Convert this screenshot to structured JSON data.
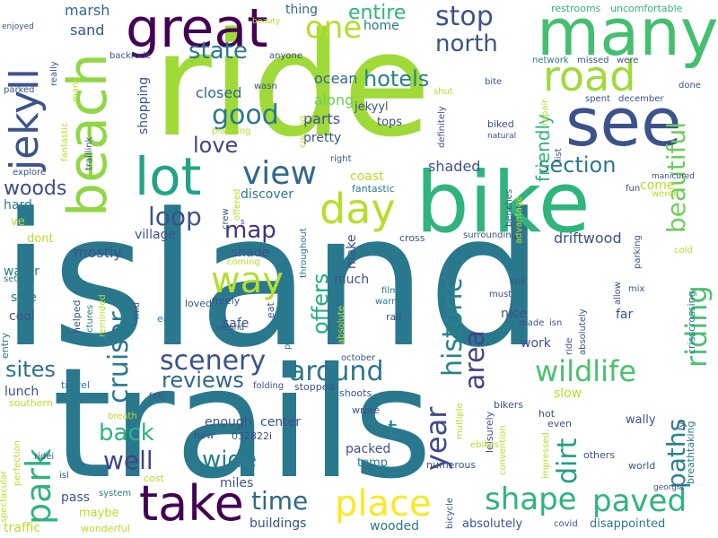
{
  "words": [
    {
      "text": "island",
      "color": "#2a788e",
      "v": false
    },
    {
      "text": "trails",
      "color": "#2a788e",
      "v": false
    },
    {
      "text": "ride",
      "color": "#a0da39",
      "v": false
    },
    {
      "text": "bike",
      "color": "#2fb47c",
      "v": false
    },
    {
      "text": "beach",
      "color": "#8fd744",
      "v": true
    },
    {
      "text": "many",
      "color": "#44bf70",
      "v": false
    },
    {
      "text": "see",
      "color": "#3b528b",
      "v": false
    },
    {
      "text": "great",
      "color": "#440154",
      "v": false
    },
    {
      "text": "jekyll",
      "color": "#3b528b",
      "v": true
    },
    {
      "text": "park",
      "color": "#2fb47c",
      "v": true
    },
    {
      "text": "lot",
      "color": "#20a386",
      "v": false
    },
    {
      "text": "take",
      "color": "#440154",
      "v": false
    },
    {
      "text": "place",
      "color": "#fde725",
      "v": false
    },
    {
      "text": "shape",
      "color": "#2fb47c",
      "v": false
    },
    {
      "text": "paved",
      "color": "#2fb47c",
      "v": false
    },
    {
      "text": "road",
      "color": "#a0da39",
      "v": false
    },
    {
      "text": "day",
      "color": "#b5de2b",
      "v": false
    },
    {
      "text": "one",
      "color": "#b5de2b",
      "v": false
    },
    {
      "text": "way",
      "color": "#b5de2b",
      "v": false
    },
    {
      "text": "view",
      "color": "#31688e",
      "v": false
    },
    {
      "text": "good",
      "color": "#2a788e",
      "v": false
    },
    {
      "text": "around",
      "color": "#2a788e",
      "v": false
    },
    {
      "text": "scenery",
      "color": "#3b528b",
      "v": false
    },
    {
      "text": "wildlife",
      "color": "#4ac16d",
      "v": false
    },
    {
      "text": "riding",
      "color": "#4ac16d",
      "v": true
    },
    {
      "text": "beautiful",
      "color": "#6ece58",
      "v": true
    },
    {
      "text": "historic",
      "color": "#26828e",
      "v": true
    },
    {
      "text": "cruiser",
      "color": "#2a788e",
      "v": true
    },
    {
      "text": "year",
      "color": "#3e4a89",
      "v": true
    },
    {
      "text": "area",
      "color": "#414487",
      "v": true
    },
    {
      "text": "dirt",
      "color": "#1f9e89",
      "v": true
    },
    {
      "text": "paths",
      "color": "#26828e",
      "v": true
    },
    {
      "text": "stop",
      "color": "#3b528b",
      "v": false
    },
    {
      "text": "north",
      "color": "#3b528b",
      "v": false
    },
    {
      "text": "hotels",
      "color": "#26828e",
      "v": false
    },
    {
      "text": "state",
      "color": "#2a788e",
      "v": false
    },
    {
      "text": "entire",
      "color": "#2fb47c",
      "v": false
    },
    {
      "text": "section",
      "color": "#2a788e",
      "v": false
    },
    {
      "text": "love",
      "color": "#414487",
      "v": false
    },
    {
      "text": "loop",
      "color": "#3b528b",
      "v": false
    },
    {
      "text": "map",
      "color": "#46327e",
      "v": false
    },
    {
      "text": "woods",
      "color": "#3e4a89",
      "v": false
    },
    {
      "text": "back",
      "color": "#2fb47c",
      "v": false
    },
    {
      "text": "well",
      "color": "#414487",
      "v": false
    },
    {
      "text": "wide",
      "color": "#287d8e",
      "v": false
    },
    {
      "text": "time",
      "color": "#31688e",
      "v": false
    },
    {
      "text": "sites",
      "color": "#2c728e",
      "v": false
    },
    {
      "text": "reviews",
      "color": "#31688e",
      "v": false
    },
    {
      "text": "offers",
      "color": "#26ad81",
      "v": true
    },
    {
      "text": "t",
      "color": "#26828e",
      "v": false
    },
    {
      "text": "shaded",
      "color": "#3b528b",
      "v": false
    },
    {
      "text": "friendly",
      "color": "#2fb47c",
      "v": true
    },
    {
      "text": "driftwood",
      "color": "#3b528b",
      "v": false
    },
    {
      "text": "mostly",
      "color": "#3b528b",
      "v": false
    },
    {
      "text": "village",
      "color": "#3b528b",
      "v": false
    },
    {
      "text": "marsh",
      "color": "#31688e",
      "v": false
    },
    {
      "text": "sand",
      "color": "#3b528b",
      "v": false
    },
    {
      "text": "thing",
      "color": "#31688e",
      "v": false
    },
    {
      "text": "home",
      "color": "#2a788e",
      "v": false
    },
    {
      "text": "ocean",
      "color": "#31688e",
      "v": false
    },
    {
      "text": "along",
      "color": "#6ece58",
      "v": false
    },
    {
      "text": "parts",
      "color": "#3b528b",
      "v": false
    },
    {
      "text": "closed",
      "color": "#31688e",
      "v": false
    },
    {
      "text": "jekyyl",
      "color": "#3b528b",
      "v": false
    },
    {
      "text": "tops",
      "color": "#3b528b",
      "v": false
    },
    {
      "text": "pretty",
      "color": "#3b528b",
      "v": false
    },
    {
      "text": "shopping",
      "color": "#3b528b",
      "v": true
    },
    {
      "text": "coast",
      "color": "#b5de2b",
      "v": false
    },
    {
      "text": "come",
      "color": "#b5de2b",
      "v": false
    },
    {
      "text": "discover",
      "color": "#2a788e",
      "v": false
    },
    {
      "text": "fantastic",
      "color": "#2a788e",
      "v": false
    },
    {
      "text": "shade",
      "color": "#3b528b",
      "v": false
    },
    {
      "text": "make",
      "color": "#3b528b",
      "v": true
    },
    {
      "text": "much",
      "color": "#3b528b",
      "v": false
    },
    {
      "text": "nice",
      "color": "#3b528b",
      "v": false
    },
    {
      "text": "far",
      "color": "#3b528b",
      "v": false
    },
    {
      "text": "work",
      "color": "#3b528b",
      "v": false
    },
    {
      "text": "safe",
      "color": "#3b528b",
      "v": false
    },
    {
      "text": "water",
      "color": "#2a788e",
      "v": false
    },
    {
      "text": "side",
      "color": "#2a788e",
      "v": false
    },
    {
      "text": "cool",
      "color": "#3b528b",
      "v": false
    },
    {
      "text": "hard",
      "color": "#2a788e",
      "v": false
    },
    {
      "text": "lunch",
      "color": "#3b528b",
      "v": false
    },
    {
      "text": "enough",
      "color": "#3b528b",
      "v": false
    },
    {
      "text": "center",
      "color": "#3b528b",
      "v": false
    },
    {
      "text": "packed",
      "color": "#3b528b",
      "v": false
    },
    {
      "text": "temp",
      "color": "#2a788e",
      "v": false
    },
    {
      "text": "miles",
      "color": "#3b528b",
      "v": false
    },
    {
      "text": "buildings",
      "color": "#3b528b",
      "v": false
    },
    {
      "text": "wooded",
      "color": "#2a788e",
      "v": false
    },
    {
      "text": "absolutely",
      "color": "#3b528b",
      "v": false
    },
    {
      "text": "disappointed",
      "color": "#2a788e",
      "v": false
    },
    {
      "text": "pass",
      "color": "#3b528b",
      "v": false
    },
    {
      "text": "maybe",
      "color": "#b5de2b",
      "v": false
    },
    {
      "text": "traffic",
      "color": "#b5de2b",
      "v": false
    },
    {
      "text": "slow",
      "color": "#b5de2b",
      "v": false
    },
    {
      "text": "stopped",
      "color": "#3b528b",
      "v": false
    },
    {
      "text": "crisscrossing",
      "color": "#2a788e",
      "v": true
    },
    {
      "text": "breathtaking",
      "color": "#2a788e",
      "v": true
    },
    {
      "text": "restrooms",
      "color": "#2fb47c",
      "v": false
    },
    {
      "text": "uncomfortable",
      "color": "#2fb47c",
      "v": false
    },
    {
      "text": "network",
      "color": "#2a788e",
      "v": false
    },
    {
      "text": "missed",
      "color": "#3b528b",
      "v": false
    },
    {
      "text": "were",
      "color": "#3b528b",
      "v": false
    },
    {
      "text": "dont",
      "color": "#b5de2b",
      "v": false
    },
    {
      "text": "ve",
      "color": "#b5de2b",
      "v": false
    },
    {
      "text": "cross",
      "color": "#3b528b",
      "v": false
    },
    {
      "text": "wally",
      "color": "#3b528b",
      "v": false
    },
    {
      "text": "world",
      "color": "#3b528b",
      "v": false
    },
    {
      "text": "others",
      "color": "#3b528b",
      "v": false
    },
    {
      "text": "even",
      "color": "#3b528b",
      "v": false
    },
    {
      "text": "hot",
      "color": "#3b528b",
      "v": false
    },
    {
      "text": "bikers",
      "color": "#3b528b",
      "v": false
    },
    {
      "text": "shoots",
      "color": "#3b528b",
      "v": false
    },
    {
      "text": "wrote",
      "color": "#3b528b",
      "v": false
    },
    {
      "text": "october",
      "color": "#3b528b",
      "v": false
    },
    {
      "text": "numerous",
      "color": "#3b528b",
      "v": false
    },
    {
      "text": "032822i",
      "color": "#3b528b",
      "v": false
    },
    {
      "text": "now",
      "color": "#3b528b",
      "v": false
    },
    {
      "text": "cost",
      "color": "#b5de2b",
      "v": false
    },
    {
      "text": "wonderful",
      "color": "#b5de2b",
      "v": false
    },
    {
      "text": "system",
      "color": "#2a788e",
      "v": false
    },
    {
      "text": "georgia",
      "color": "#3b528b",
      "v": false
    },
    {
      "text": "covid",
      "color": "#3b528b",
      "v": false
    },
    {
      "text": "entry",
      "color": "#2a788e",
      "v": true
    },
    {
      "text": "travel",
      "color": "#2a788e",
      "v": false
    },
    {
      "text": "southern",
      "color": "#b5de2b",
      "v": false
    },
    {
      "text": "breath",
      "color": "#b5de2b",
      "v": false
    },
    {
      "text": "ridei",
      "color": "#3b528b",
      "v": false
    },
    {
      "text": "isl",
      "color": "#3b528b",
      "v": false
    },
    {
      "text": "spectacular",
      "color": "#b5de2b",
      "v": true
    },
    {
      "text": "perfection",
      "color": "#b5de2b",
      "v": true
    },
    {
      "text": "felt",
      "color": "#3b528b",
      "v": false
    },
    {
      "text": "folding",
      "color": "#3b528b",
      "v": false
    },
    {
      "text": "setting",
      "color": "#2a788e",
      "v": false
    },
    {
      "text": "loved",
      "color": "#3b528b",
      "v": false
    },
    {
      "text": "freely",
      "color": "#3b528b",
      "v": false
    },
    {
      "text": "easy",
      "color": "#2a788e",
      "v": false
    },
    {
      "text": "second",
      "color": "#3b528b",
      "v": false
    },
    {
      "text": "eat",
      "color": "#3b528b",
      "v": true
    },
    {
      "text": "helped",
      "color": "#3b528b",
      "v": true
    },
    {
      "text": "pictures",
      "color": "#2a788e",
      "v": true
    },
    {
      "text": "reminded",
      "color": "#b5de2b",
      "v": true
    },
    {
      "text": "mid",
      "color": "#3b528b",
      "v": true
    },
    {
      "text": "perfectly",
      "color": "#2a788e",
      "v": true
    },
    {
      "text": "throughout",
      "color": "#2a788e",
      "v": true
    },
    {
      "text": "absolute",
      "color": "#b5de2b",
      "v": true
    },
    {
      "text": "warmer",
      "color": "#2a788e",
      "v": false
    },
    {
      "text": "film",
      "color": "#2a788e",
      "v": false
    },
    {
      "text": "rail",
      "color": "#3b528b",
      "v": false
    },
    {
      "text": "made",
      "color": "#3b528b",
      "v": false
    },
    {
      "text": "isn",
      "color": "#3b528b",
      "v": false
    },
    {
      "text": "must",
      "color": "#3b528b",
      "v": false
    },
    {
      "text": "still",
      "color": "#3b528b",
      "v": false
    },
    {
      "text": "leisurely",
      "color": "#3b528b",
      "v": true
    },
    {
      "text": "multiple",
      "color": "#b5de2b",
      "v": true
    },
    {
      "text": "ebikes",
      "color": "#b5de2b",
      "v": false
    },
    {
      "text": "convention",
      "color": "#b5de2b",
      "v": true
    },
    {
      "text": "bicycle",
      "color": "#3b528b",
      "v": true
    },
    {
      "text": "impressed",
      "color": "#b5de2b",
      "v": true
    },
    {
      "text": "ride",
      "color": "#3b528b",
      "v": true
    },
    {
      "text": "absolutely",
      "color": "#3b528b",
      "v": true
    },
    {
      "text": "allow",
      "color": "#3b528b",
      "v": true
    },
    {
      "text": "mix",
      "color": "#3b528b",
      "v": false
    },
    {
      "text": "fyi",
      "color": "#3b528b",
      "v": true
    },
    {
      "text": "surroundings",
      "color": "#3b528b",
      "v": false
    },
    {
      "text": "parking",
      "color": "#3b528b",
      "v": true
    },
    {
      "text": "cold",
      "color": "#b5de2b",
      "v": false
    },
    {
      "text": "fun",
      "color": "#3b528b",
      "v": false
    },
    {
      "text": "weren",
      "color": "#b5de2b",
      "v": false
    },
    {
      "text": "manicured",
      "color": "#3b528b",
      "v": false
    },
    {
      "text": "benches",
      "color": "#3b528b",
      "v": true
    },
    {
      "text": "advantage",
      "color": "#b5de2b",
      "v": true
    },
    {
      "text": "biked",
      "color": "#3b528b",
      "v": false
    },
    {
      "text": "natural",
      "color": "#3b528b",
      "v": false
    },
    {
      "text": "list",
      "color": "#3b528b",
      "v": true
    },
    {
      "text": "repair",
      "color": "#b5de2b",
      "v": true
    },
    {
      "text": "done",
      "color": "#3b528b",
      "v": false
    },
    {
      "text": "spent",
      "color": "#3b528b",
      "v": false
    },
    {
      "text": "december",
      "color": "#3b528b",
      "v": false
    },
    {
      "text": "bite",
      "color": "#3b528b",
      "v": false
    },
    {
      "text": "shut",
      "color": "#b5de2b",
      "v": false
    },
    {
      "text": "definitely",
      "color": "#3b528b",
      "v": true
    },
    {
      "text": "right",
      "color": "#3b528b",
      "v": false
    },
    {
      "text": "cooling",
      "color": "#b5de2b",
      "v": true
    },
    {
      "text": "planning",
      "color": "#b5de2b",
      "v": false
    },
    {
      "text": "wasn",
      "color": "#3b528b",
      "v": false
    },
    {
      "text": "anyone",
      "color": "#3b528b",
      "v": false
    },
    {
      "text": "backrode",
      "color": "#3b528b",
      "v": false
    },
    {
      "text": "really",
      "color": "#3b528b",
      "v": true
    },
    {
      "text": "fantastic",
      "color": "#b5de2b",
      "v": true
    },
    {
      "text": "many",
      "color": "#b5de2b",
      "v": true
    },
    {
      "text": "traillink",
      "color": "#3b528b",
      "v": true
    },
    {
      "text": "enjoyed",
      "color": "#3b528b",
      "v": false
    },
    {
      "text": "parked",
      "color": "#3b528b",
      "v": false
    },
    {
      "text": "explore",
      "color": "#3b528b",
      "v": false
    },
    {
      "text": "beauty",
      "color": "#b5de2b",
      "v": false
    },
    {
      "text": "crew",
      "color": "#3b528b",
      "v": true
    },
    {
      "text": "offered",
      "color": "#b5de2b",
      "v": true
    },
    {
      "text": "s",
      "color": "#3b528b",
      "v": false
    },
    {
      "text": "coming",
      "color": "#b5de2b",
      "v": false
    }
  ]
}
